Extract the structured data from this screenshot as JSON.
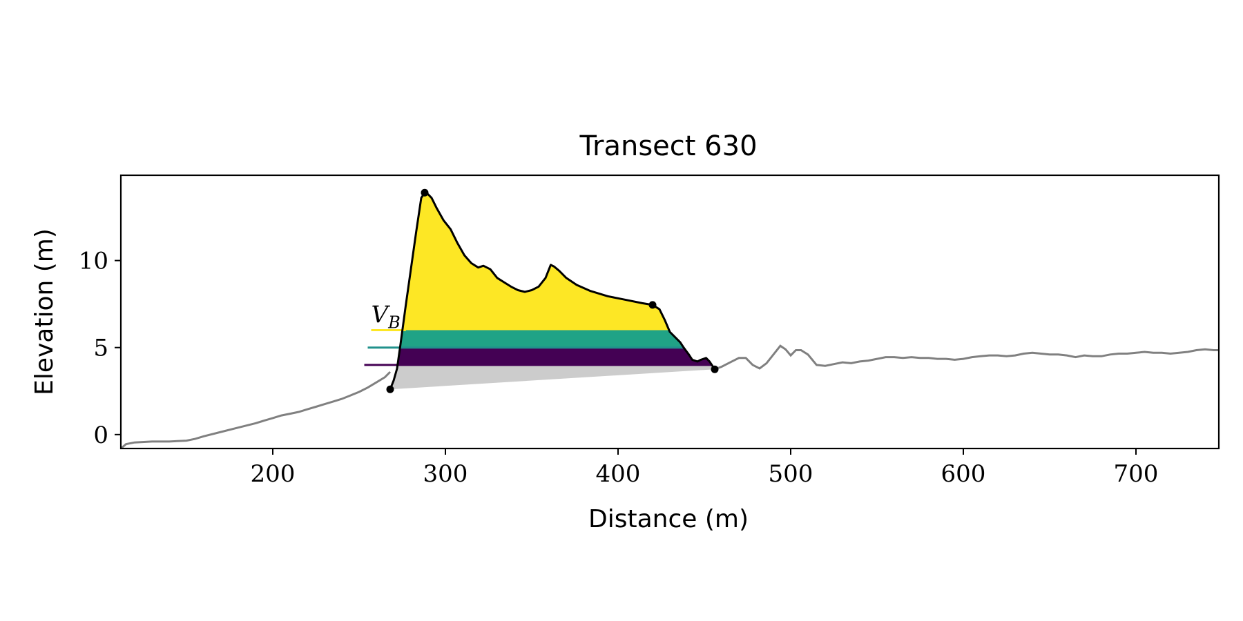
{
  "chart_data": {
    "type": "line",
    "title": "Transect 630",
    "xlabel": "Distance (m)",
    "ylabel": "Elevation (m)",
    "xlim": [
      112,
      748
    ],
    "ylim": [
      -0.8,
      14.9
    ],
    "xticks": [
      {
        "value": 200,
        "label": "200"
      },
      {
        "value": 300,
        "label": "300"
      },
      {
        "value": 400,
        "label": "400"
      },
      {
        "value": 500,
        "label": "500"
      },
      {
        "value": 600,
        "label": "600"
      },
      {
        "value": 700,
        "label": "700"
      }
    ],
    "yticks": [
      {
        "value": 0,
        "label": "0"
      },
      {
        "value": 5,
        "label": "5"
      },
      {
        "value": 10,
        "label": "10"
      }
    ],
    "grid": false,
    "annotation": {
      "text": "V",
      "subscript": "B",
      "x": 257,
      "y": 6.2
    },
    "colors": {
      "profile": "#808080",
      "dune": "#000000",
      "base_fill": "#cccccc",
      "band_low": "#440154",
      "band_mid": "#21918c",
      "band_high": "#fde725",
      "band_mid_fill": "#20a386"
    },
    "profile": {
      "x": [
        112,
        115,
        120,
        130,
        140,
        150,
        155,
        160,
        170,
        180,
        190,
        195,
        200,
        205,
        210,
        215,
        220,
        225,
        230,
        235,
        240,
        245,
        250,
        255,
        260,
        265,
        268
      ],
      "y": [
        -0.8,
        -0.55,
        -0.45,
        -0.4,
        -0.4,
        -0.35,
        -0.25,
        -0.1,
        0.15,
        0.4,
        0.65,
        0.8,
        0.95,
        1.1,
        1.2,
        1.3,
        1.45,
        1.6,
        1.75,
        1.9,
        2.05,
        2.25,
        2.45,
        2.7,
        3.0,
        3.3,
        3.6
      ]
    },
    "dune_profile": {
      "x": [
        268,
        270,
        272,
        274,
        277,
        280,
        283,
        286,
        288,
        290,
        292,
        295,
        299,
        303,
        307,
        311,
        315,
        319,
        322,
        326,
        330,
        334,
        338,
        342,
        346,
        350,
        354,
        358,
        361,
        363,
        366,
        370,
        376,
        384,
        394,
        404,
        414,
        420,
        424,
        427,
        430,
        433,
        436,
        438,
        441,
        443,
        446,
        448,
        451,
        453,
        456
      ],
      "y": [
        2.6,
        3.1,
        3.8,
        5.2,
        7.4,
        9.5,
        11.6,
        13.6,
        13.9,
        13.8,
        13.6,
        13.0,
        12.3,
        11.8,
        11.0,
        10.3,
        9.85,
        9.6,
        9.7,
        9.5,
        9.0,
        8.75,
        8.5,
        8.3,
        8.2,
        8.3,
        8.5,
        9.0,
        9.75,
        9.65,
        9.4,
        9.0,
        8.6,
        8.25,
        7.95,
        7.75,
        7.55,
        7.45,
        7.2,
        6.6,
        5.9,
        5.6,
        5.3,
        5.0,
        4.6,
        4.3,
        4.2,
        4.3,
        4.4,
        4.2,
        3.75
      ]
    },
    "beach_profile": {
      "x": [
        456,
        460,
        465,
        470,
        474,
        478,
        482,
        486,
        490,
        494,
        497,
        500,
        503,
        506,
        510,
        515,
        520,
        525,
        530,
        535,
        540,
        545,
        550,
        555,
        560,
        565,
        570,
        575,
        580,
        585,
        590,
        595,
        600,
        605,
        610,
        615,
        620,
        625,
        630,
        635,
        640,
        645,
        650,
        655,
        660,
        665,
        670,
        675,
        680,
        685,
        690,
        695,
        700,
        705,
        710,
        715,
        720,
        725,
        730,
        735,
        740,
        745,
        748
      ],
      "y": [
        3.75,
        3.9,
        4.15,
        4.4,
        4.4,
        4.0,
        3.8,
        4.1,
        4.6,
        5.1,
        4.9,
        4.55,
        4.85,
        4.85,
        4.6,
        4.0,
        3.95,
        4.05,
        4.15,
        4.1,
        4.2,
        4.25,
        4.35,
        4.45,
        4.45,
        4.4,
        4.45,
        4.4,
        4.4,
        4.35,
        4.35,
        4.3,
        4.35,
        4.45,
        4.5,
        4.55,
        4.55,
        4.5,
        4.55,
        4.65,
        4.7,
        4.65,
        4.6,
        4.6,
        4.55,
        4.45,
        4.55,
        4.5,
        4.5,
        4.6,
        4.65,
        4.65,
        4.7,
        4.75,
        4.7,
        4.7,
        4.65,
        4.7,
        4.75,
        4.85,
        4.9,
        4.85,
        4.85
      ]
    },
    "markers": [
      {
        "x": 268,
        "y": 2.6
      },
      {
        "x": 288,
        "y": 13.9
      },
      {
        "x": 420,
        "y": 7.45
      },
      {
        "x": 456,
        "y": 3.75
      }
    ],
    "base_line": {
      "x": [
        268,
        456
      ],
      "y": [
        2.6,
        3.75
      ]
    },
    "bands": [
      {
        "level_low": 5.0,
        "level_high": 6.0,
        "fill": "band_mid_fill"
      },
      {
        "level_low": 4.0,
        "level_high": 5.0,
        "fill": "band_low"
      }
    ],
    "reference_lines": [
      {
        "y": 6.0,
        "x_start": 257,
        "color": "band_high"
      },
      {
        "y": 5.0,
        "x_start": 255,
        "color": "band_mid"
      },
      {
        "y": 4.0,
        "x_start": 253,
        "color": "band_low"
      }
    ]
  }
}
